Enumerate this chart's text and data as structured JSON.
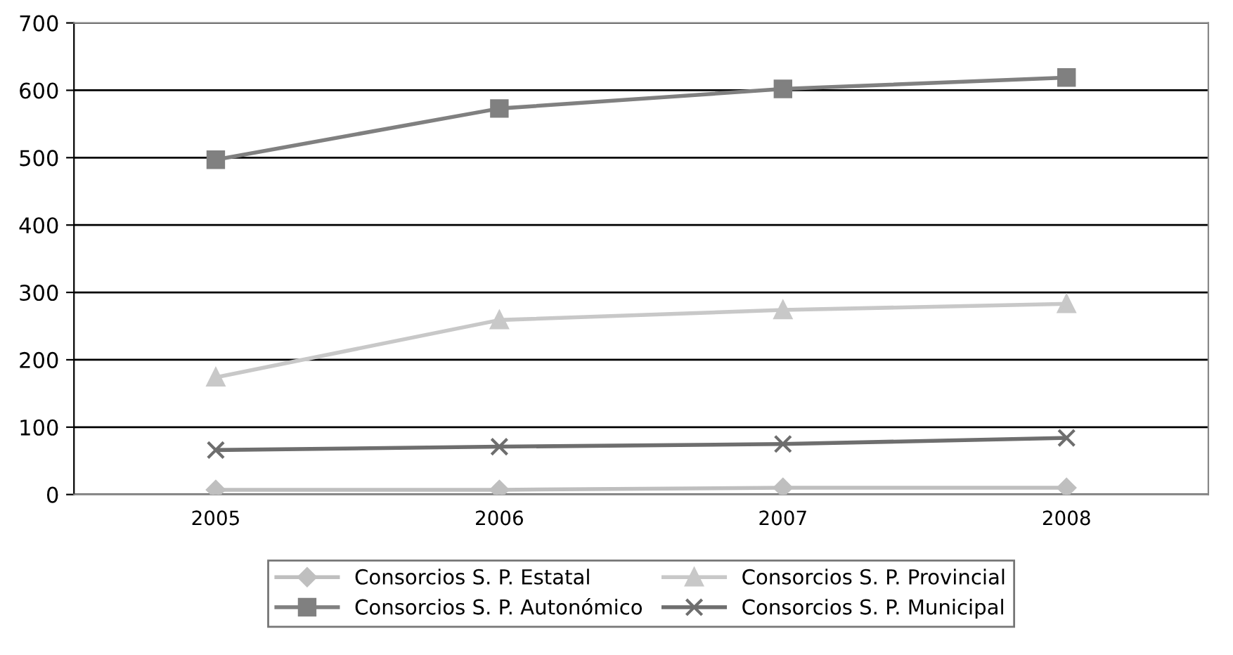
{
  "chart_data": {
    "type": "line",
    "categories": [
      "2005",
      "2006",
      "2007",
      "2008"
    ],
    "series": [
      {
        "name": "Consorcios S. P. Estatal",
        "color": "#bfbfbf",
        "marker": "diamond",
        "values": [
          7,
          7,
          10,
          10
        ]
      },
      {
        "name": "Consorcios S. P. Autonómico",
        "color": "#808080",
        "marker": "square",
        "values": [
          497,
          573,
          602,
          619
        ]
      },
      {
        "name": "Consorcios S. P. Provincial",
        "color": "#c8c8c8",
        "marker": "triangle",
        "values": [
          174,
          259,
          274,
          283
        ]
      },
      {
        "name": "Consorcios S. P. Municipal",
        "color": "#6e6e6e",
        "marker": "cross",
        "values": [
          66,
          71,
          75,
          84
        ]
      }
    ],
    "ylim": [
      0,
      700
    ],
    "yticks": [
      0,
      100,
      200,
      300,
      400,
      500,
      600,
      700
    ],
    "grid": "y",
    "legend": "bottom"
  }
}
